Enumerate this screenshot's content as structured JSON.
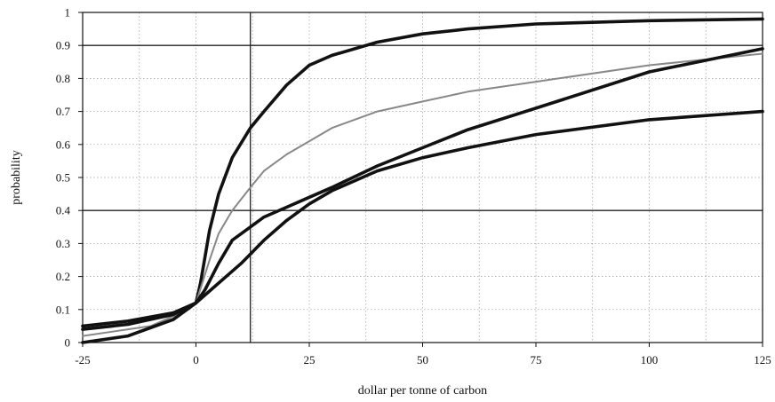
{
  "chart_data": {
    "type": "line",
    "title": "",
    "xlabel": "dollar per tonne of carbon",
    "ylabel": "probability",
    "xlim": [
      -25,
      125
    ],
    "ylim": [
      0,
      1
    ],
    "x_ticks": [
      -25,
      0,
      25,
      50,
      75,
      100,
      125
    ],
    "x_tick_labels": [
      "-25",
      "0",
      "25",
      "50",
      "75",
      "100",
      "125"
    ],
    "y_ticks": [
      0,
      0.1,
      0.2,
      0.3,
      0.4,
      0.5,
      0.6,
      0.7,
      0.8,
      0.9,
      1
    ],
    "y_tick_labels": [
      "0",
      "0.1",
      "0.2",
      "0.3",
      "0.4",
      "0.5",
      "0.6",
      "0.7",
      "0.8",
      "0.9",
      "1"
    ],
    "grid": "dotted",
    "legend": "none",
    "reference_lines": {
      "vertical_x": 12,
      "horizontal_y": [
        0.4,
        0.9
      ]
    },
    "series": [
      {
        "color": "#111111",
        "style": "thick",
        "x": [
          -25,
          -15,
          -5,
          0,
          1,
          2,
          3,
          5,
          8,
          12,
          15,
          20,
          25,
          30,
          40,
          50,
          60,
          75,
          100,
          125
        ],
        "values": [
          0.05,
          0.065,
          0.09,
          0.12,
          0.18,
          0.26,
          0.34,
          0.45,
          0.56,
          0.65,
          0.7,
          0.78,
          0.84,
          0.87,
          0.91,
          0.935,
          0.95,
          0.965,
          0.975,
          0.98
        ]
      },
      {
        "color": "#888888",
        "style": "thin",
        "x": [
          -25,
          -10,
          -5,
          0,
          3,
          5,
          8,
          12,
          15,
          20,
          25,
          30,
          40,
          50,
          60,
          75,
          100,
          125
        ],
        "values": [
          0.02,
          0.05,
          0.08,
          0.12,
          0.25,
          0.33,
          0.4,
          0.47,
          0.52,
          0.57,
          0.61,
          0.65,
          0.7,
          0.73,
          0.76,
          0.79,
          0.84,
          0.875
        ]
      },
      {
        "color": "#111111",
        "style": "thick",
        "x": [
          -25,
          -15,
          -5,
          0,
          2,
          5,
          8,
          12,
          15,
          20,
          25,
          30,
          40,
          50,
          60,
          75,
          100,
          125
        ],
        "values": [
          0.04,
          0.055,
          0.085,
          0.12,
          0.16,
          0.24,
          0.31,
          0.35,
          0.38,
          0.41,
          0.44,
          0.47,
          0.535,
          0.59,
          0.645,
          0.71,
          0.82,
          0.89
        ]
      },
      {
        "color": "#111111",
        "style": "thick",
        "x": [
          -25,
          -15,
          -5,
          0,
          5,
          10,
          15,
          20,
          25,
          30,
          40,
          50,
          60,
          75,
          100,
          125
        ],
        "values": [
          0.0,
          0.02,
          0.07,
          0.12,
          0.18,
          0.24,
          0.31,
          0.37,
          0.42,
          0.46,
          0.52,
          0.56,
          0.59,
          0.63,
          0.675,
          0.7
        ]
      }
    ]
  }
}
